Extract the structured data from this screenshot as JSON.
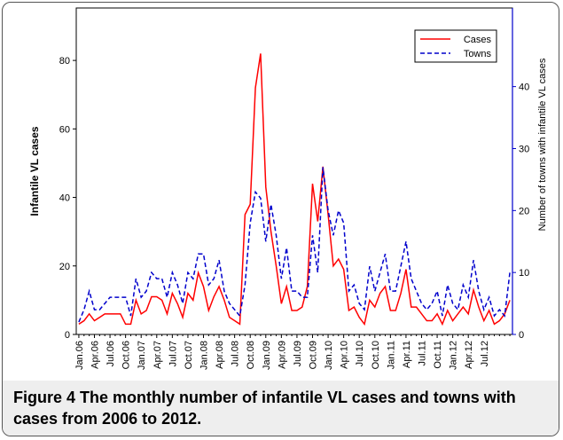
{
  "chart_data": {
    "type": "line",
    "categories": [
      "Jan.06",
      null,
      null,
      "Apr.06",
      null,
      null,
      "Jul.06",
      null,
      null,
      "Oct.06",
      null,
      null,
      "Jan.07",
      null,
      null,
      "Apr.07",
      null,
      null,
      "Jul.07",
      null,
      null,
      "Oct.07",
      null,
      null,
      "Jan.08",
      null,
      null,
      "Apr.08",
      null,
      null,
      "Jul.08",
      null,
      null,
      "Oct.08",
      null,
      null,
      "Jan.09",
      null,
      null,
      "Apr.09",
      null,
      null,
      "Jul.09",
      null,
      null,
      "Oct.09",
      null,
      null,
      "Jan.10",
      null,
      null,
      "Apr.10",
      null,
      null,
      "Jul.10",
      null,
      null,
      "Oct.10",
      null,
      null,
      "Jan.11",
      null,
      null,
      "Apr.11",
      null,
      null,
      "Jul.11",
      null,
      null,
      "Oct.11",
      null,
      null,
      "Jan.12",
      null,
      null,
      "Apr.12",
      null,
      null,
      "Jul.12",
      null,
      null,
      null,
      null,
      null
    ],
    "series": [
      {
        "name": "Cases",
        "color": "#ff0000",
        "axis": "y",
        "values": [
          3,
          4,
          6,
          4,
          5,
          6,
          6,
          6,
          6,
          3,
          3,
          10,
          6,
          7,
          11,
          11,
          10,
          6,
          12,
          9,
          5,
          12,
          10,
          18,
          14,
          7,
          11,
          14,
          10,
          5,
          4,
          3,
          35,
          38,
          72,
          82,
          43,
          30,
          20,
          9,
          14,
          7,
          7,
          8,
          14,
          44,
          33,
          49,
          35,
          20,
          22,
          19,
          7,
          8,
          5,
          3,
          10,
          8,
          12,
          14,
          7,
          7,
          12,
          19,
          8,
          8,
          6,
          4,
          4,
          6,
          3,
          7,
          4,
          6,
          8,
          6,
          13,
          8,
          4,
          7,
          3,
          4,
          6,
          10
        ]
      },
      {
        "name": "Towns",
        "color": "#0000cc",
        "axis": "y2",
        "values": [
          2,
          4,
          7,
          4,
          4,
          5,
          6,
          6,
          6,
          6,
          3,
          9,
          6,
          7,
          10,
          9,
          9,
          6,
          10,
          8,
          5,
          10,
          9,
          13,
          13,
          8,
          9,
          12,
          7,
          5,
          4,
          3,
          8,
          18,
          23,
          22,
          15,
          21,
          16,
          9,
          14,
          7,
          7,
          6,
          6,
          16,
          10,
          27,
          20,
          16,
          20,
          18,
          7,
          8,
          5,
          4,
          11,
          7,
          10,
          13,
          7,
          7,
          11,
          15,
          9,
          7,
          5,
          4,
          5,
          7,
          3,
          8,
          5,
          4,
          8,
          6,
          12,
          7,
          4,
          6,
          3,
          4,
          3,
          10
        ]
      }
    ],
    "y_label": "Infantile VL cases",
    "y2_label": "Number of towns with infantile VL cases",
    "ylim": [
      0,
      95.3
    ],
    "yticks": [
      0,
      20,
      40,
      60,
      80
    ],
    "y2lim": [
      0,
      52.7
    ],
    "y2ticks": [
      0,
      10,
      20,
      30,
      40
    ],
    "y2_color": "#0000cc",
    "legend": "upper right",
    "figure_label": "Figure 4",
    "caption": "The monthly number of infantile VL cases and towns with cases from 2006 to 2012."
  }
}
